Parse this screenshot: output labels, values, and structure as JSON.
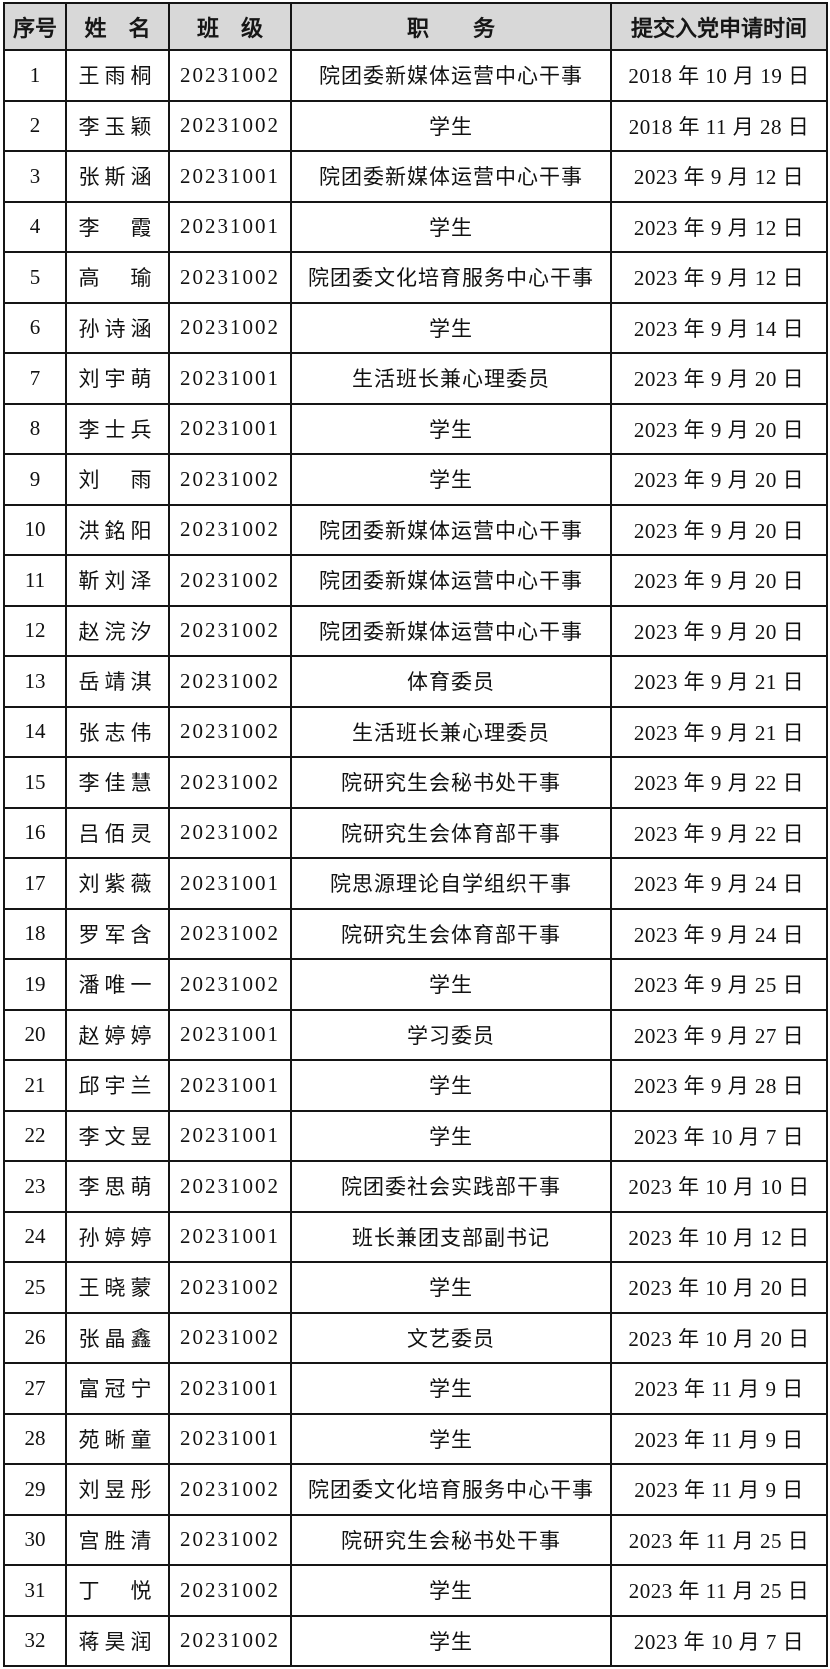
{
  "page": {
    "background_color": "#ffffff",
    "header_bg_color": "#d8d8d8",
    "border_color": "#151515"
  },
  "table": {
    "columns": [
      "序号",
      "姓　名",
      "班　级",
      "职　　务",
      "提交入党申请时间"
    ],
    "rows": [
      {
        "no": "1",
        "name": "王雨桐",
        "class_no": "20231002",
        "position": "院团委新媒体运营中心干事",
        "date": "2018 年 10 月 19 日"
      },
      {
        "no": "2",
        "name": "李玉颖",
        "class_no": "20231002",
        "position": "学生",
        "date": "2018 年 11 月 28 日"
      },
      {
        "no": "3",
        "name": "张斯涵",
        "class_no": "20231001",
        "position": "院团委新媒体运营中心干事",
        "date": "2023 年 9 月 12 日"
      },
      {
        "no": "4",
        "name": "李　霞",
        "class_no": "20231001",
        "position": "学生",
        "date": "2023 年 9 月 12 日"
      },
      {
        "no": "5",
        "name": "高　瑜",
        "class_no": "20231002",
        "position": "院团委文化培育服务中心干事",
        "date": "2023 年 9 月 12 日"
      },
      {
        "no": "6",
        "name": "孙诗涵",
        "class_no": "20231002",
        "position": "学生",
        "date": "2023 年 9 月 14 日"
      },
      {
        "no": "7",
        "name": "刘宇萌",
        "class_no": "20231001",
        "position": "生活班长兼心理委员",
        "date": "2023 年 9 月 20 日"
      },
      {
        "no": "8",
        "name": "李士兵",
        "class_no": "20231001",
        "position": "学生",
        "date": "2023 年 9 月 20 日"
      },
      {
        "no": "9",
        "name": "刘　雨",
        "class_no": "20231002",
        "position": "学生",
        "date": "2023 年 9 月 20 日"
      },
      {
        "no": "10",
        "name": "洪銘阳",
        "class_no": "20231002",
        "position": "院团委新媒体运营中心干事",
        "date": "2023 年 9 月 20 日"
      },
      {
        "no": "11",
        "name": "靳刘泽",
        "class_no": "20231002",
        "position": "院团委新媒体运营中心干事",
        "date": "2023 年 9 月 20 日"
      },
      {
        "no": "12",
        "name": "赵浣汐",
        "class_no": "20231002",
        "position": "院团委新媒体运营中心干事",
        "date": "2023 年 9 月 20 日"
      },
      {
        "no": "13",
        "name": "岳靖淇",
        "class_no": "20231002",
        "position": "体育委员",
        "date": "2023 年 9 月 21 日"
      },
      {
        "no": "14",
        "name": "张志伟",
        "class_no": "20231002",
        "position": "生活班长兼心理委员",
        "date": "2023 年 9 月 21 日"
      },
      {
        "no": "15",
        "name": "李佳慧",
        "class_no": "20231002",
        "position": "院研究生会秘书处干事",
        "date": "2023 年 9 月 22 日"
      },
      {
        "no": "16",
        "name": "吕佰灵",
        "class_no": "20231002",
        "position": "院研究生会体育部干事",
        "date": "2023 年 9 月 22 日"
      },
      {
        "no": "17",
        "name": "刘紫薇",
        "class_no": "20231001",
        "position": "院思源理论自学组织干事",
        "date": "2023 年 9 月 24 日"
      },
      {
        "no": "18",
        "name": "罗军含",
        "class_no": "20231002",
        "position": "院研究生会体育部干事",
        "date": "2023 年 9 月 24 日"
      },
      {
        "no": "19",
        "name": "潘唯一",
        "class_no": "20231002",
        "position": "学生",
        "date": "2023 年 9 月 25 日"
      },
      {
        "no": "20",
        "name": "赵婷婷",
        "class_no": "20231001",
        "position": "学习委员",
        "date": "2023 年 9 月 27 日"
      },
      {
        "no": "21",
        "name": "邱宇兰",
        "class_no": "20231001",
        "position": "学生",
        "date": "2023 年 9 月 28 日"
      },
      {
        "no": "22",
        "name": "李文昱",
        "class_no": "20231001",
        "position": "学生",
        "date": "2023 年 10 月 7 日"
      },
      {
        "no": "23",
        "name": "李思萌",
        "class_no": "20231002",
        "position": "院团委社会实践部干事",
        "date": "2023 年 10 月 10 日"
      },
      {
        "no": "24",
        "name": "孙婷婷",
        "class_no": "20231001",
        "position": "班长兼团支部副书记",
        "date": "2023 年 10 月 12 日"
      },
      {
        "no": "25",
        "name": "王晓蒙",
        "class_no": "20231002",
        "position": "学生",
        "date": "2023 年 10 月 20 日"
      },
      {
        "no": "26",
        "name": "张晶鑫",
        "class_no": "20231002",
        "position": "文艺委员",
        "date": "2023 年 10 月 20 日"
      },
      {
        "no": "27",
        "name": "富冠宁",
        "class_no": "20231001",
        "position": "学生",
        "date": "2023 年 11 月 9 日"
      },
      {
        "no": "28",
        "name": "苑晰童",
        "class_no": "20231001",
        "position": "学生",
        "date": "2023 年 11 月 9 日"
      },
      {
        "no": "29",
        "name": "刘昱彤",
        "class_no": "20231002",
        "position": "院团委文化培育服务中心干事",
        "date": "2023 年 11 月 9 日"
      },
      {
        "no": "30",
        "name": "宫胜清",
        "class_no": "20231002",
        "position": "院研究生会秘书处干事",
        "date": "2023 年 11 月 25 日"
      },
      {
        "no": "31",
        "name": "丁　悦",
        "class_no": "20231002",
        "position": "学生",
        "date": "2023 年 11 月 25 日"
      },
      {
        "no": "32",
        "name": "蒋昊润",
        "class_no": "20231002",
        "position": "学生",
        "date": "2023 年 10 月 7 日"
      }
    ]
  }
}
